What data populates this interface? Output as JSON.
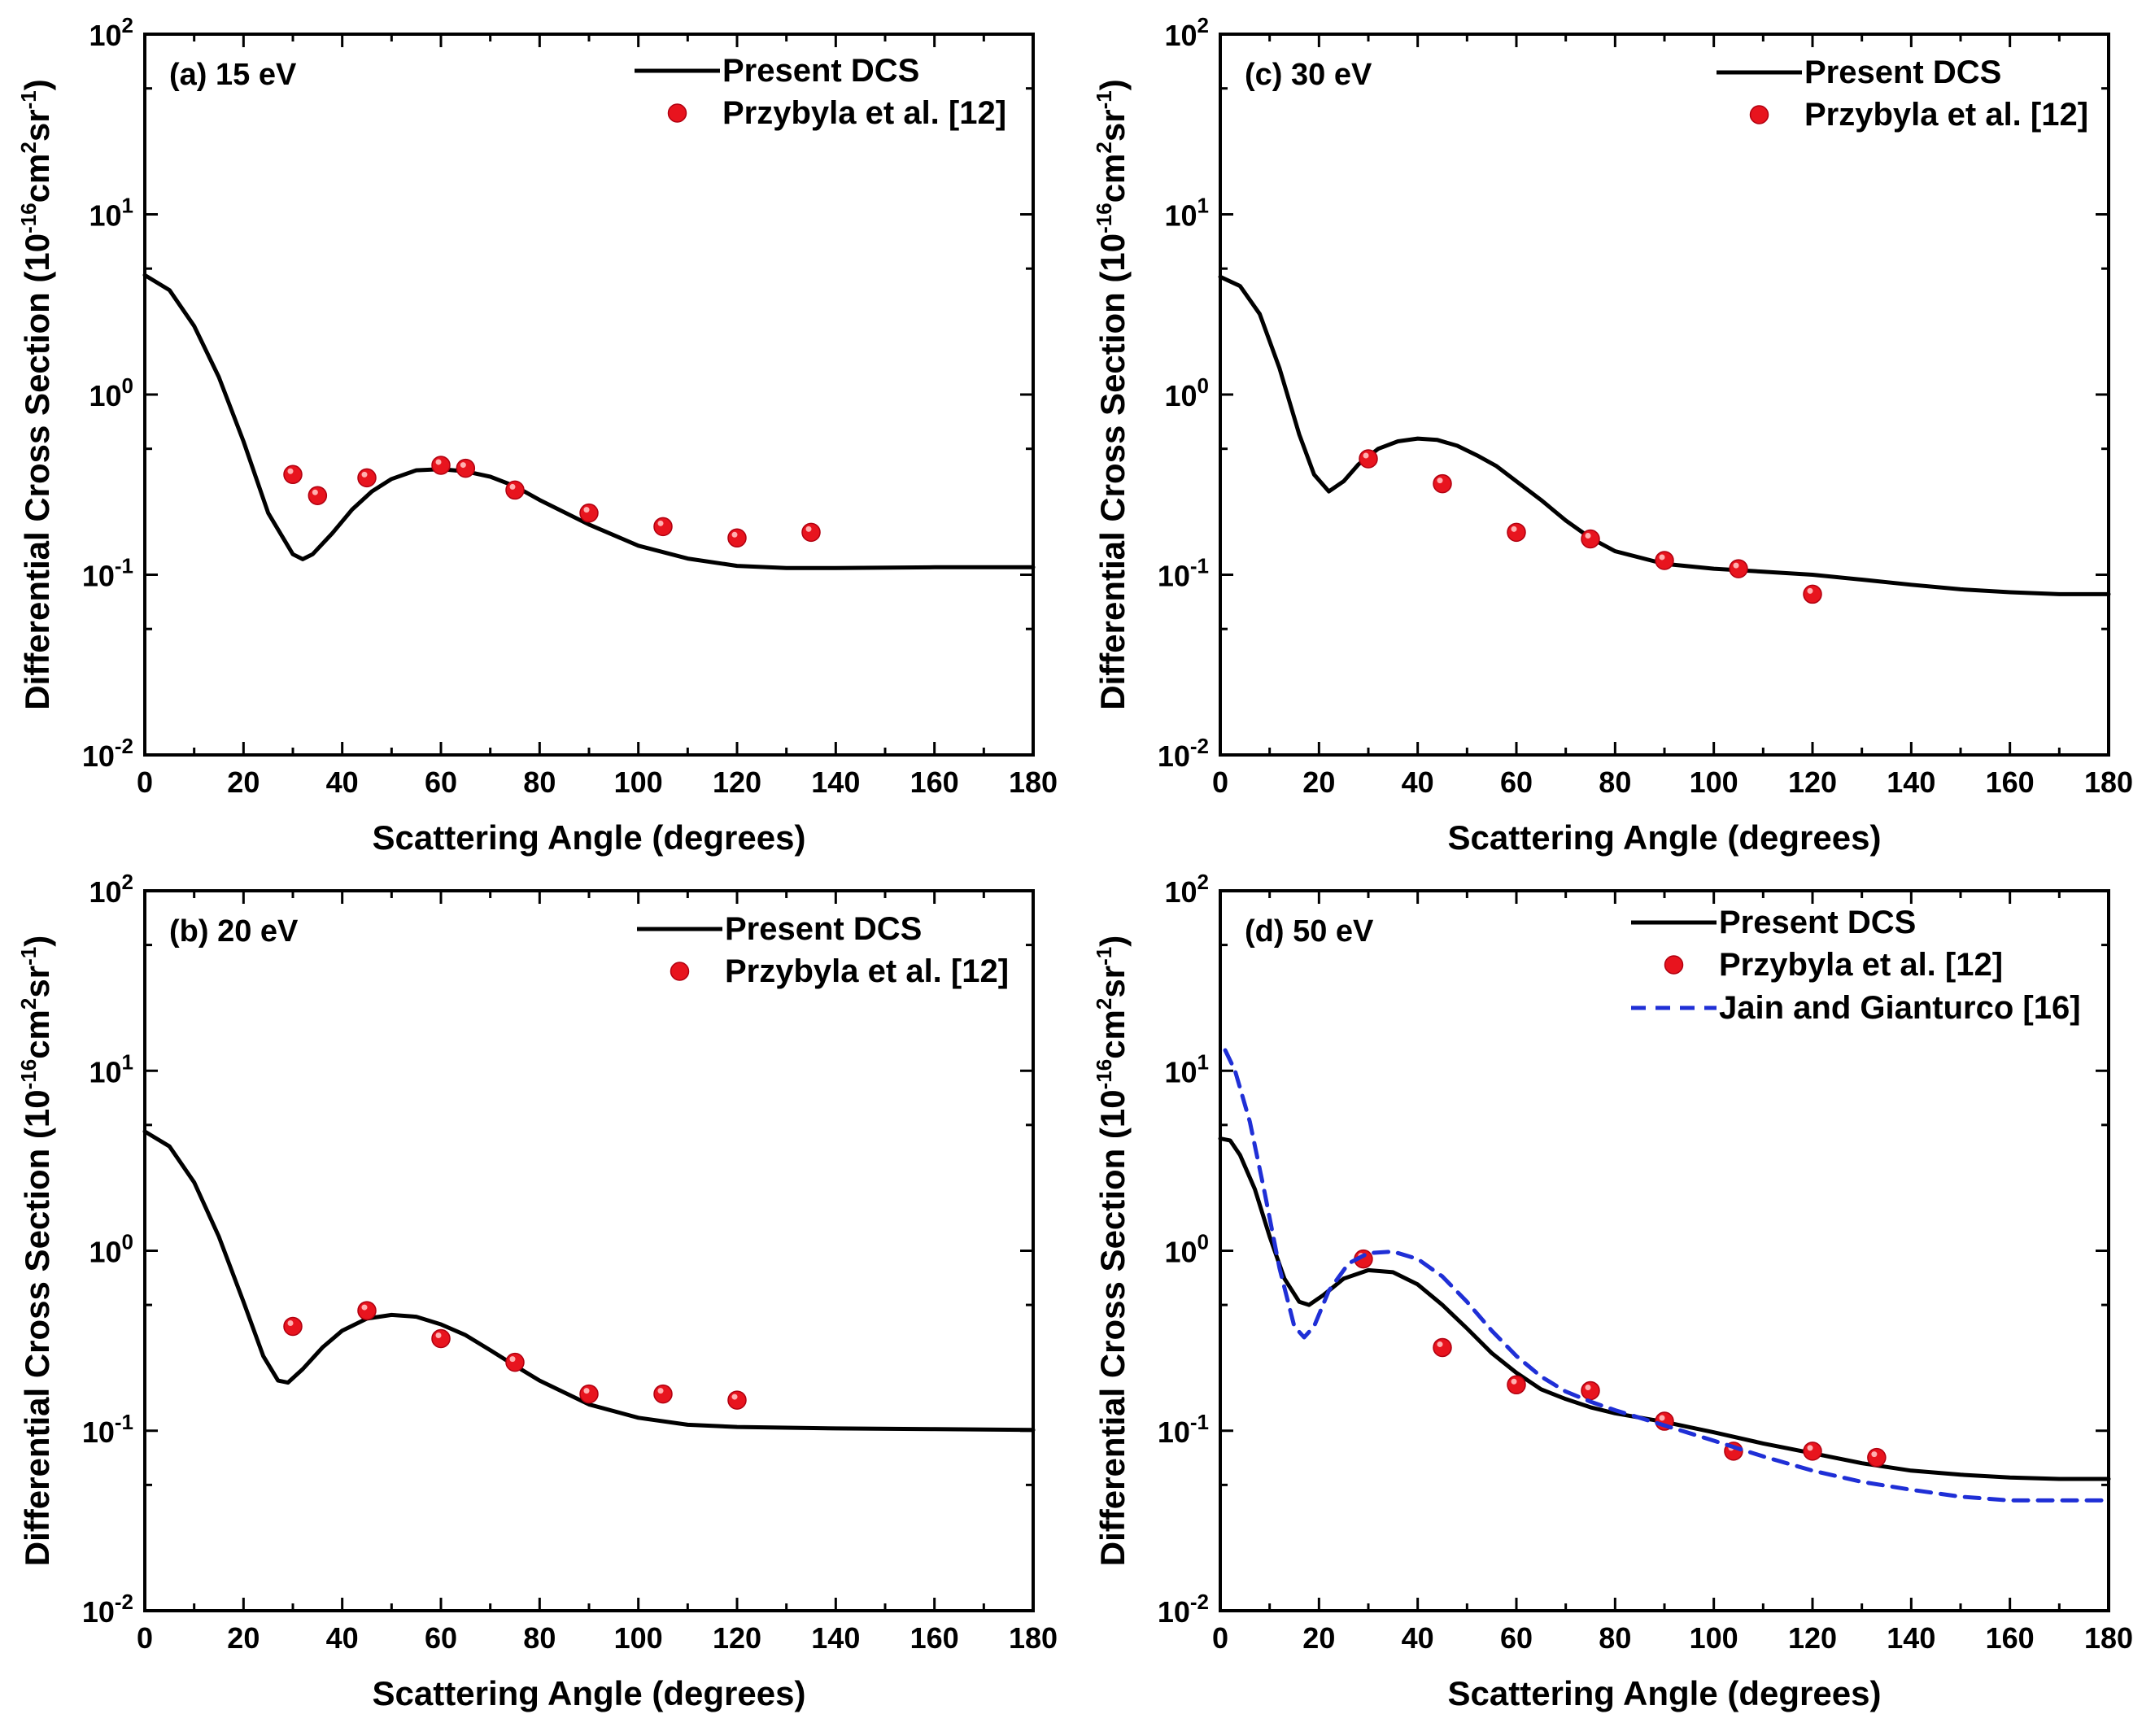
{
  "chart_data": [
    {
      "type": "line",
      "panel_label": "(a) 15 eV",
      "xlabel": "Scattering Angle (degrees)",
      "ylabel": "Differential Cross Section",
      "ylabel_unit": {
        "open": " (10",
        "exp1": "-16",
        "mid1": "cm",
        "exp2": "2",
        "mid2": "sr",
        "exp3": "-1",
        "close": ")"
      },
      "xlim": [
        0,
        180
      ],
      "ylim": [
        0.01,
        100
      ],
      "yscale": "log",
      "x_ticks": [
        "0",
        "20",
        "40",
        "60",
        "80",
        "100",
        "120",
        "140",
        "160",
        "180"
      ],
      "y_ticks": [
        {
          "base": "10",
          "exp": "-2"
        },
        {
          "base": "10",
          "exp": "-1"
        },
        {
          "base": "10",
          "exp": "0"
        },
        {
          "base": "10",
          "exp": "1"
        },
        {
          "base": "10",
          "exp": "2"
        }
      ],
      "legend_position": "top-right",
      "series": [
        {
          "name": "Present DCS",
          "style": "solid",
          "color": "#000000",
          "x": [
            0,
            5,
            10,
            15,
            20,
            25,
            30,
            32,
            34,
            38,
            42,
            46,
            50,
            55,
            60,
            65,
            70,
            75,
            80,
            90,
            100,
            110,
            120,
            130,
            140,
            160,
            180
          ],
          "y": [
            4.6,
            3.8,
            2.4,
            1.25,
            0.55,
            0.22,
            0.13,
            0.122,
            0.13,
            0.17,
            0.23,
            0.29,
            0.34,
            0.38,
            0.385,
            0.375,
            0.35,
            0.31,
            0.26,
            0.19,
            0.145,
            0.123,
            0.112,
            0.109,
            0.109,
            0.11,
            0.11
          ]
        },
        {
          "name": "Przybyla et al. [12]",
          "style": "markers",
          "color": "#e8141e",
          "x": [
            30,
            35,
            45,
            60,
            65,
            75,
            90,
            105,
            120,
            135
          ],
          "y": [
            0.36,
            0.275,
            0.345,
            0.405,
            0.39,
            0.295,
            0.22,
            0.185,
            0.16,
            0.172
          ]
        }
      ]
    },
    {
      "type": "line",
      "panel_label": "(c) 30 eV",
      "xlabel": "Scattering Angle (degrees)",
      "ylabel": "Differential Cross Section",
      "ylabel_unit": {
        "open": " (10",
        "exp1": "-16",
        "mid1": "cm",
        "exp2": "2",
        "mid2": "sr",
        "exp3": "-1",
        "close": ")"
      },
      "xlim": [
        0,
        180
      ],
      "ylim": [
        0.01,
        100
      ],
      "yscale": "log",
      "x_ticks": [
        "0",
        "20",
        "40",
        "60",
        "80",
        "100",
        "120",
        "140",
        "160",
        "180"
      ],
      "y_ticks": [
        {
          "base": "10",
          "exp": "-2"
        },
        {
          "base": "10",
          "exp": "-1"
        },
        {
          "base": "10",
          "exp": "0"
        },
        {
          "base": "10",
          "exp": "1"
        },
        {
          "base": "10",
          "exp": "2"
        }
      ],
      "legend_position": "top-right",
      "series": [
        {
          "name": "Present DCS",
          "style": "solid",
          "color": "#000000",
          "x": [
            0,
            4,
            8,
            12,
            16,
            19,
            22,
            25,
            28,
            32,
            36,
            40,
            44,
            48,
            52,
            56,
            60,
            65,
            70,
            75,
            80,
            90,
            100,
            110,
            120,
            130,
            140,
            150,
            160,
            170,
            180
          ],
          "y": [
            4.5,
            4.0,
            2.8,
            1.4,
            0.6,
            0.36,
            0.29,
            0.33,
            0.41,
            0.5,
            0.55,
            0.57,
            0.56,
            0.52,
            0.46,
            0.4,
            0.33,
            0.26,
            0.2,
            0.16,
            0.135,
            0.115,
            0.108,
            0.104,
            0.1,
            0.094,
            0.088,
            0.083,
            0.08,
            0.078,
            0.078
          ]
        },
        {
          "name": "Przybyla et al. [12]",
          "style": "markers",
          "color": "#e8141e",
          "x": [
            30,
            45,
            60,
            75,
            90,
            105,
            120
          ],
          "y": [
            0.44,
            0.32,
            0.172,
            0.158,
            0.12,
            0.108,
            0.078
          ]
        }
      ]
    },
    {
      "type": "line",
      "panel_label": "(b) 20 eV",
      "xlabel": "Scattering Angle (degrees)",
      "ylabel": "Differential Cross Section",
      "ylabel_unit": {
        "open": " (10",
        "exp1": "-16",
        "mid1": "cm",
        "exp2": "2",
        "mid2": "sr",
        "exp3": "-1",
        "close": ")"
      },
      "xlim": [
        0,
        180
      ],
      "ylim": [
        0.01,
        100
      ],
      "yscale": "log",
      "x_ticks": [
        "0",
        "20",
        "40",
        "60",
        "80",
        "100",
        "120",
        "140",
        "160",
        "180"
      ],
      "y_ticks": [
        {
          "base": "10",
          "exp": "-2"
        },
        {
          "base": "10",
          "exp": "-1"
        },
        {
          "base": "10",
          "exp": "0"
        },
        {
          "base": "10",
          "exp": "1"
        },
        {
          "base": "10",
          "exp": "2"
        }
      ],
      "legend_position": "top-right",
      "series": [
        {
          "name": "Present DCS",
          "style": "solid",
          "color": "#000000",
          "x": [
            0,
            5,
            10,
            15,
            20,
            24,
            27,
            29,
            32,
            36,
            40,
            45,
            50,
            55,
            60,
            65,
            70,
            75,
            80,
            90,
            100,
            110,
            120,
            140,
            160,
            180
          ],
          "y": [
            4.6,
            3.8,
            2.4,
            1.2,
            0.52,
            0.26,
            0.19,
            0.185,
            0.22,
            0.29,
            0.36,
            0.42,
            0.44,
            0.43,
            0.39,
            0.34,
            0.28,
            0.23,
            0.19,
            0.14,
            0.118,
            0.108,
            0.105,
            0.103,
            0.102,
            0.101
          ]
        },
        {
          "name": "Przybyla et al. [12]",
          "style": "markers",
          "color": "#e8141e",
          "x": [
            30,
            45,
            60,
            75,
            90,
            105,
            120
          ],
          "y": [
            0.38,
            0.465,
            0.325,
            0.24,
            0.16,
            0.16,
            0.148
          ]
        }
      ]
    },
    {
      "type": "line",
      "panel_label": "(d) 50 eV",
      "xlabel": "Scattering Angle (degrees)",
      "ylabel": "Differential Cross Section",
      "ylabel_unit": {
        "open": " (10",
        "exp1": "-16",
        "mid1": "cm",
        "exp2": "2",
        "mid2": "sr",
        "exp3": "-1",
        "close": ")"
      },
      "xlim": [
        0,
        180
      ],
      "ylim": [
        0.01,
        100
      ],
      "yscale": "log",
      "x_ticks": [
        "0",
        "20",
        "40",
        "60",
        "80",
        "100",
        "120",
        "140",
        "160",
        "180"
      ],
      "y_ticks": [
        {
          "base": "10",
          "exp": "-2"
        },
        {
          "base": "10",
          "exp": "-1"
        },
        {
          "base": "10",
          "exp": "0"
        },
        {
          "base": "10",
          "exp": "1"
        },
        {
          "base": "10",
          "exp": "2"
        }
      ],
      "legend_position": "top-right",
      "series": [
        {
          "name": "Present DCS",
          "style": "solid",
          "color": "#000000",
          "x": [
            0,
            2,
            4,
            7,
            10,
            13,
            16,
            18,
            21,
            25,
            30,
            35,
            40,
            45,
            50,
            55,
            60,
            65,
            70,
            75,
            80,
            90,
            100,
            110,
            120,
            130,
            140,
            150,
            160,
            170,
            180
          ],
          "y": [
            4.2,
            4.1,
            3.4,
            2.2,
            1.2,
            0.7,
            0.52,
            0.5,
            0.57,
            0.7,
            0.78,
            0.76,
            0.65,
            0.5,
            0.37,
            0.27,
            0.21,
            0.17,
            0.15,
            0.135,
            0.125,
            0.112,
            0.098,
            0.085,
            0.075,
            0.066,
            0.06,
            0.057,
            0.055,
            0.054,
            0.054
          ]
        },
        {
          "name": "Przybyla et al. [12]",
          "style": "markers",
          "color": "#e8141e",
          "x": [
            29,
            45,
            60,
            75,
            90,
            104,
            120,
            133
          ],
          "y": [
            0.9,
            0.29,
            0.18,
            0.167,
            0.113,
            0.077,
            0.077,
            0.071
          ]
        },
        {
          "name": "Jain and Gianturco [16]",
          "style": "dashed",
          "color": "#1f2fd6",
          "x": [
            1,
            3,
            6,
            9,
            12,
            15,
            17,
            19,
            22,
            26,
            30,
            35,
            40,
            45,
            50,
            55,
            60,
            65,
            70,
            75,
            80,
            90,
            100,
            110,
            120,
            130,
            140,
            150,
            160,
            170,
            180
          ],
          "y": [
            13,
            10,
            5.2,
            2.1,
            0.8,
            0.38,
            0.33,
            0.38,
            0.6,
            0.85,
            0.97,
            0.99,
            0.9,
            0.72,
            0.52,
            0.36,
            0.26,
            0.2,
            0.165,
            0.145,
            0.13,
            0.107,
            0.088,
            0.072,
            0.06,
            0.052,
            0.047,
            0.043,
            0.041,
            0.041,
            0.041
          ]
        }
      ]
    }
  ]
}
